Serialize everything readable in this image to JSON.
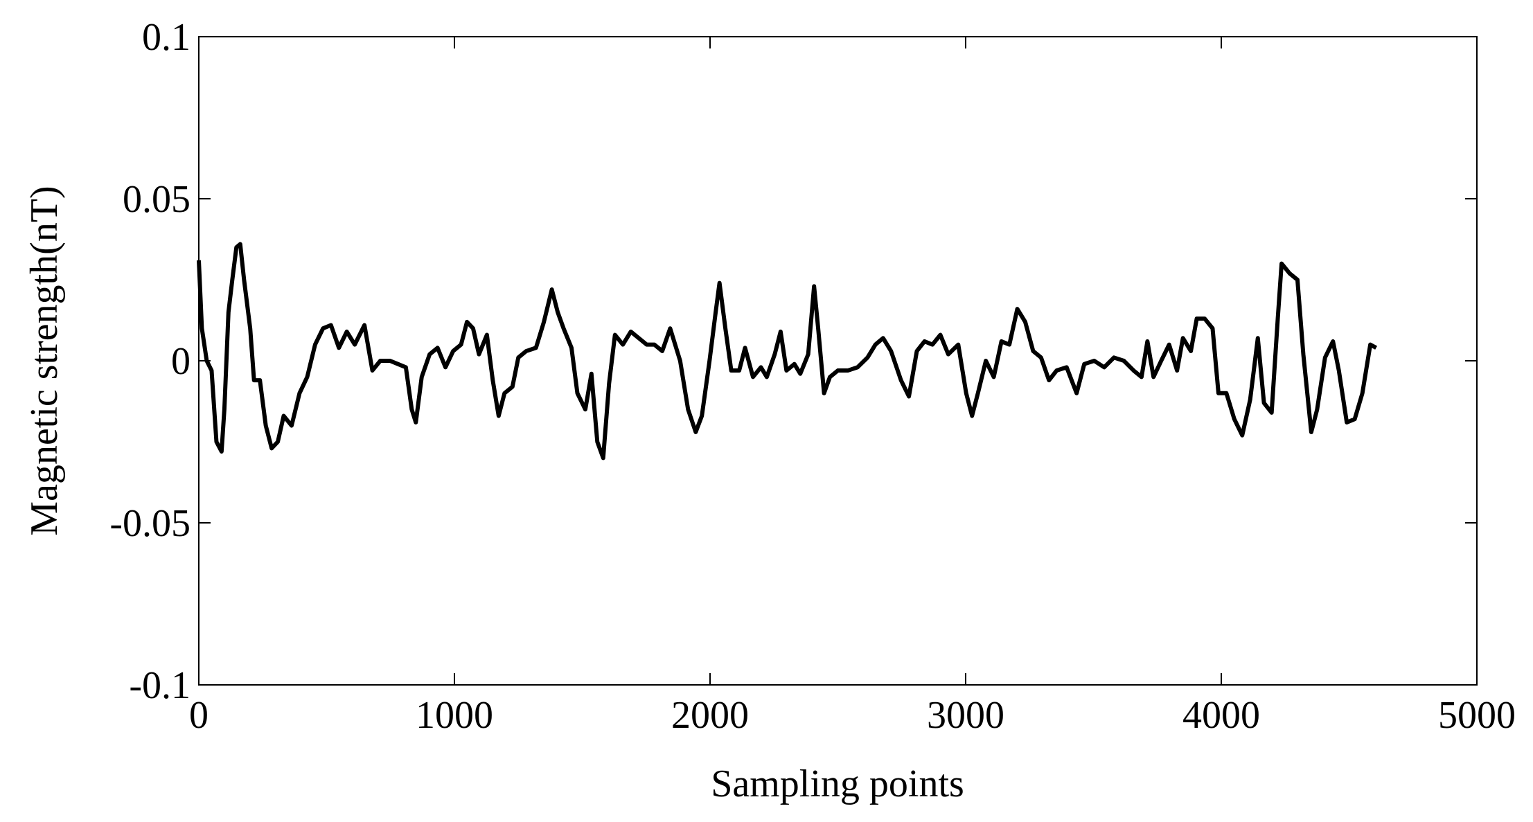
{
  "chart_data": {
    "type": "line",
    "xlabel": "Sampling points",
    "ylabel": "Magnetic strength(nT)",
    "xlim": [
      0,
      5000
    ],
    "ylim": [
      -0.1,
      0.1
    ],
    "xticks": [
      0,
      1000,
      2000,
      3000,
      4000,
      5000
    ],
    "yticks": [
      -0.1,
      -0.05,
      0,
      0.05,
      0.1
    ],
    "grid": false,
    "series": [
      {
        "color": "#000000",
        "x": [
          0,
          12,
          31,
          50,
          69,
          89,
          100,
          116,
          131,
          147,
          162,
          177,
          201,
          216,
          239,
          262,
          285,
          309,
          332,
          363,
          394,
          424,
          455,
          486,
          517,
          548,
          579,
          610,
          648,
          679,
          710,
          748,
          779,
          810,
          833,
          849,
          872,
          903,
          934,
          965,
          995,
          1026,
          1049,
          1073,
          1096,
          1127,
          1150,
          1173,
          1196,
          1227,
          1250,
          1281,
          1319,
          1350,
          1381,
          1404,
          1427,
          1458,
          1481,
          1512,
          1536,
          1559,
          1582,
          1605,
          1628,
          1659,
          1690,
          1721,
          1752,
          1782,
          1813,
          1844,
          1883,
          1914,
          1944,
          1968,
          1998,
          2022,
          2037,
          2060,
          2083,
          2114,
          2137,
          2168,
          2199,
          2222,
          2253,
          2276,
          2299,
          2330,
          2353,
          2384,
          2407,
          2423,
          2446,
          2469,
          2500,
          2539,
          2577,
          2616,
          2647,
          2677,
          2708,
          2747,
          2778,
          2809,
          2839,
          2870,
          2901,
          2932,
          2971,
          3002,
          3025,
          3048,
          3079,
          3110,
          3140,
          3171,
          3202,
          3233,
          3264,
          3295,
          3326,
          3356,
          3395,
          3434,
          3464,
          3503,
          3542,
          3580,
          3619,
          3657,
          3688,
          3711,
          3735,
          3765,
          3796,
          3827,
          3850,
          3881,
          3904,
          3935,
          3966,
          3989,
          4020,
          4051,
          4082,
          4113,
          4143,
          4167,
          4197,
          4221,
          4236,
          4267,
          4298,
          4321,
          4352,
          4375,
          4406,
          4437,
          4460,
          4491,
          4522,
          4552,
          4583,
          4606
        ],
        "values": [
          0.031,
          0.01,
          0,
          -0.003,
          -0.025,
          -0.028,
          -0.015,
          0.015,
          0.025,
          0.035,
          0.036,
          0.025,
          0.01,
          -0.006,
          -0.006,
          -0.02,
          -0.027,
          -0.025,
          -0.017,
          -0.02,
          -0.01,
          -0.005,
          0.005,
          0.01,
          0.011,
          0.004,
          0.009,
          0.005,
          0.011,
          -0.003,
          0,
          0,
          -0.001,
          -0.002,
          -0.015,
          -0.019,
          -0.005,
          0.002,
          0.004,
          -0.002,
          0.003,
          0.005,
          0.012,
          0.01,
          0.002,
          0.008,
          -0.006,
          -0.017,
          -0.01,
          -0.008,
          0.001,
          0.003,
          0.004,
          0.012,
          0.022,
          0.015,
          0.01,
          0.004,
          -0.01,
          -0.015,
          -0.004,
          -0.025,
          -0.03,
          -0.007,
          0.008,
          0.005,
          0.009,
          0.007,
          0.005,
          0.005,
          0.003,
          0.01,
          0,
          -0.015,
          -0.022,
          -0.017,
          0,
          0.015,
          0.024,
          0.01,
          -0.003,
          -0.003,
          0.004,
          -0.005,
          -0.002,
          -0.005,
          0.002,
          0.009,
          -0.003,
          -0.001,
          -0.004,
          0.002,
          0.023,
          0.01,
          -0.01,
          -0.005,
          -0.003,
          -0.003,
          -0.002,
          0.001,
          0.005,
          0.007,
          0.003,
          -0.006,
          -0.011,
          0.003,
          0.006,
          0.005,
          0.008,
          0.002,
          0.005,
          -0.01,
          -0.017,
          -0.01,
          0,
          -0.005,
          0.006,
          0.005,
          0.016,
          0.012,
          0.003,
          0.001,
          -0.006,
          -0.003,
          -0.002,
          -0.01,
          -0.001,
          0,
          -0.002,
          0.001,
          0,
          -0.003,
          -0.005,
          0.006,
          -0.005,
          0,
          0.005,
          -0.003,
          0.007,
          0.003,
          0.013,
          0.013,
          0.01,
          -0.01,
          -0.01,
          -0.018,
          -0.023,
          -0.012,
          0.007,
          -0.013,
          -0.016,
          0.013,
          0.03,
          0.027,
          0.025,
          0.002,
          -0.022,
          -0.015,
          0.001,
          0.006,
          -0.003,
          -0.019,
          -0.018,
          -0.01,
          0.005,
          0.004
        ]
      }
    ]
  }
}
